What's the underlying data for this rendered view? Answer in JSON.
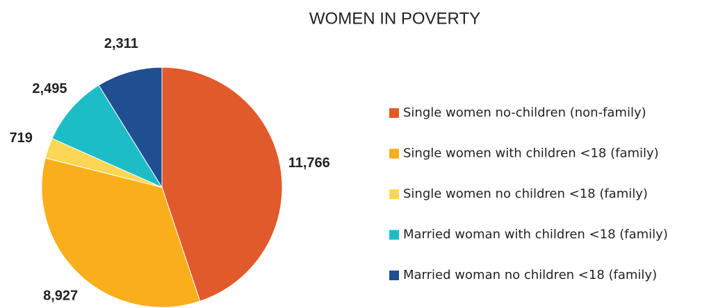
{
  "chart_data": {
    "type": "pie",
    "title": "WOMEN IN POVERTY",
    "categories": [
      "Single women no-children (non-family)",
      "Single women with children <18 (family)",
      "Single women no children <18 (family)",
      "Married woman with children <18 (family)",
      "Married woman no children <18 (family)"
    ],
    "values": [
      11766,
      8927,
      719,
      2495,
      2311
    ],
    "value_labels": [
      "11,766",
      "8,927",
      "719",
      "2,495",
      "2,311"
    ],
    "colors": [
      "#E05A2B",
      "#F9AE1B",
      "#FDD655",
      "#1DBDC8",
      "#1F4E91"
    ],
    "legend": "right"
  }
}
